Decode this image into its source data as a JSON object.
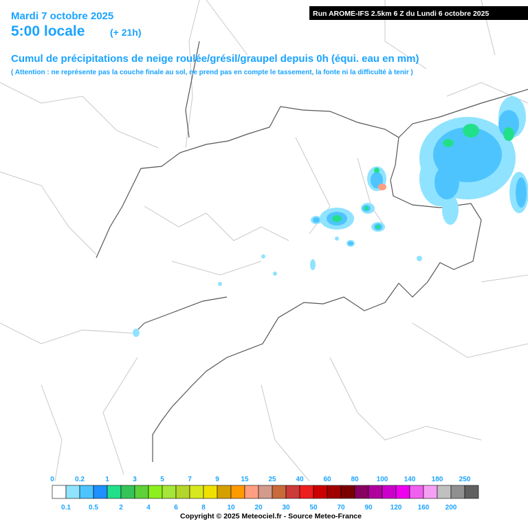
{
  "header": {
    "date": "Mardi 7 octobre 2025",
    "time": "5:00 locale",
    "lead": "(+ 21h)",
    "run": "Run AROME-IFS 2.5km 6 Z du Lundi 6 octobre 2025",
    "title": "Cumul de précipitations de neige roulée/grésil/graupel depuis 0h (équi. eau en mm)",
    "note": "( Attention : ne représente pas la couche finale au sol, ne prend pas en compte le tassement, la fonte ni la difficulté à tenir )"
  },
  "legend": {
    "labels": [
      "0",
      "0.1",
      "0.2",
      "0.5",
      "1",
      "2",
      "3",
      "4",
      "5",
      "6",
      "7",
      "8",
      "9",
      "10",
      "15",
      "20",
      "25",
      "30",
      "40",
      "50",
      "60",
      "70",
      "80",
      "90",
      "100",
      "120",
      "140",
      "160",
      "180",
      "200",
      "250"
    ],
    "colors": [
      "#ffffff",
      "#8fe3ff",
      "#4ec4ff",
      "#1e90ff",
      "#22e08a",
      "#36c45a",
      "#5fd13a",
      "#8cf01e",
      "#a6e63a",
      "#b4d62a",
      "#d8e81e",
      "#f0e000",
      "#d4a000",
      "#ff9a00",
      "#ff9e80",
      "#d49a8c",
      "#c86a3a",
      "#cc3a3a",
      "#ee1e1e",
      "#cc0000",
      "#a00000",
      "#7a0000",
      "#880060",
      "#b0009c",
      "#cc00cc",
      "#ee00ee",
      "#f060f0",
      "#f5a0f5",
      "#c0c0c0",
      "#909090",
      "#606060",
      "#303030"
    ]
  },
  "footer": {
    "copyright": "Copyright © 2025 Meteociel.fr - Source Meteo-France"
  }
}
